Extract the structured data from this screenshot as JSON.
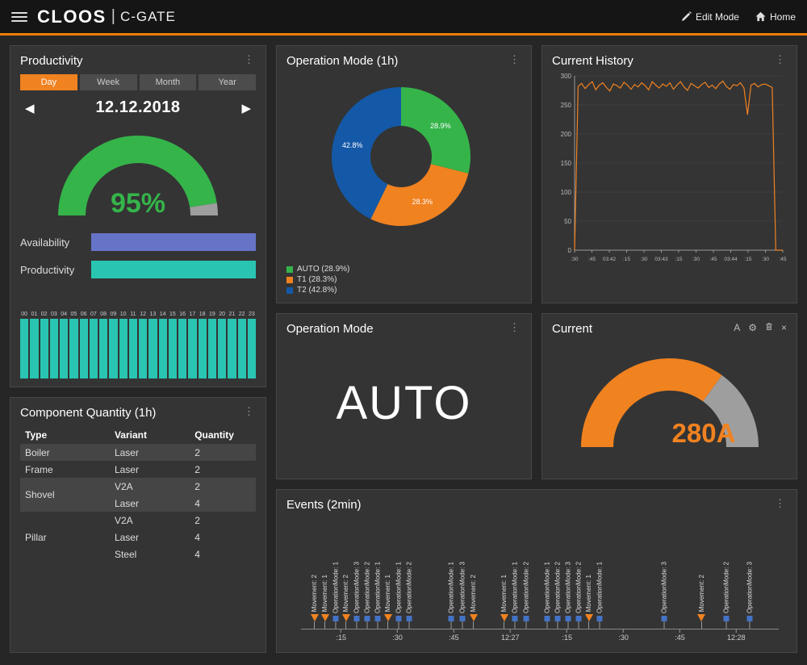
{
  "header": {
    "logo": "CLOOS",
    "divider": "|",
    "product": "C-GATE",
    "actions": [
      {
        "label": "Edit Mode",
        "icon": "edit-icon"
      },
      {
        "label": "Home",
        "icon": "home-icon"
      }
    ]
  },
  "colors": {
    "accent_orange": "#f08220",
    "green": "#35b44a",
    "teal": "#29c5b2",
    "blue_bar": "#6674c8",
    "donut_blue": "#1459a8",
    "gauge_gray": "#9e9e9e"
  },
  "productivity": {
    "title": "Productivity",
    "menu_icon": "⋮",
    "tabs": [
      {
        "label": "Day",
        "active": true
      },
      {
        "label": "Week",
        "active": false
      },
      {
        "label": "Month",
        "active": false
      },
      {
        "label": "Year",
        "active": false
      }
    ],
    "date_nav": {
      "prev": "◀",
      "date": "12.12.2018",
      "next": "▶"
    },
    "chart_data": {
      "type": "gauge",
      "value_pct": 95,
      "label": "95%",
      "color": "#35b44a",
      "rest_color": "#9e9e9e"
    },
    "kpi_bars": [
      {
        "label": "Availability",
        "value_pct": 100,
        "color": "#6674c8"
      },
      {
        "label": "Productivity",
        "value_pct": 100,
        "color": "#29c5b2"
      }
    ],
    "hourly_chart": {
      "type": "bar",
      "color": "#29c5b2",
      "categories": [
        "00",
        "01",
        "02",
        "03",
        "04",
        "05",
        "06",
        "07",
        "08",
        "09",
        "10",
        "11",
        "12",
        "13",
        "14",
        "15",
        "16",
        "17",
        "18",
        "19",
        "20",
        "21",
        "22",
        "23"
      ],
      "values_pct": [
        100,
        100,
        100,
        100,
        100,
        100,
        100,
        100,
        100,
        100,
        100,
        100,
        100,
        100,
        100,
        100,
        100,
        100,
        100,
        100,
        100,
        100,
        100,
        100
      ]
    }
  },
  "component_quantity": {
    "title": "Component Quantity (1h)",
    "menu_icon": "⋮",
    "columns": [
      "Type",
      "Variant",
      "Quantity"
    ],
    "groups": [
      {
        "type": "Boiler",
        "shaded": true,
        "rows": [
          {
            "variant": "Laser",
            "quantity": 2
          }
        ]
      },
      {
        "type": "Frame",
        "shaded": false,
        "rows": [
          {
            "variant": "Laser",
            "quantity": 2
          }
        ]
      },
      {
        "type": "Shovel",
        "shaded": true,
        "rows": [
          {
            "variant": "V2A",
            "quantity": 2
          },
          {
            "variant": "Laser",
            "quantity": 4
          }
        ]
      },
      {
        "type": "Pillar",
        "shaded": false,
        "rows": [
          {
            "variant": "V2A",
            "quantity": 2
          },
          {
            "variant": "Laser",
            "quantity": 4
          },
          {
            "variant": "Steel",
            "quantity": 4
          }
        ]
      }
    ]
  },
  "operation_mode_1h": {
    "title": "Operation Mode (1h)",
    "menu_icon": "⋮",
    "chart_data": {
      "type": "pie",
      "donut": true,
      "legend_position": "bottom-left",
      "slices": [
        {
          "name": "AUTO",
          "pct": 28.9,
          "color": "#35b44a",
          "label": "28.9%",
          "legend": "AUTO (28.9%)"
        },
        {
          "name": "T1",
          "pct": 28.3,
          "color": "#f08220",
          "label": "28.3%",
          "legend": "T1 (28.3%)"
        },
        {
          "name": "T2",
          "pct": 42.8,
          "color": "#1459a8",
          "label": "42.8%",
          "legend": "T2 (42.8%)"
        }
      ]
    }
  },
  "current_history": {
    "title": "Current History",
    "menu_icon": "⋮",
    "chart_data": {
      "type": "line",
      "color": "#f08220",
      "ylim": [
        0,
        300
      ],
      "yticks": [
        0,
        50,
        100,
        150,
        200,
        250,
        300
      ],
      "xticks": [
        ":30",
        ":45",
        "03:42",
        ":15",
        ":30",
        "03:43",
        ":15",
        ":30",
        ":45",
        "03:44",
        ":15",
        ":30",
        ":45"
      ],
      "values": [
        0,
        282,
        287,
        278,
        285,
        290,
        276,
        284,
        288,
        280,
        274,
        286,
        283,
        279,
        289,
        284,
        277,
        285,
        281,
        288,
        283,
        276,
        290,
        284,
        279,
        286,
        282,
        288,
        277,
        284,
        290,
        281,
        275,
        287,
        283,
        279,
        285,
        289,
        280,
        284,
        278,
        286,
        291,
        282,
        277,
        285,
        283,
        288,
        279,
        233,
        284,
        287,
        281,
        285,
        286,
        283,
        280,
        0,
        0,
        0
      ]
    }
  },
  "operation_mode": {
    "title": "Operation Mode",
    "menu_icon": "⋮",
    "value": "AUTO"
  },
  "current": {
    "title": "Current",
    "toolbar": {
      "text_icon": "A",
      "settings_icon": "⚙",
      "close_icon": "×"
    },
    "chart_data": {
      "type": "gauge",
      "value": 280,
      "max": 400,
      "label": "280A",
      "color": "#f08220",
      "rest_color": "#9e9e9e"
    }
  },
  "events": {
    "title": "Events (2min)",
    "menu_icon": "⋮",
    "chart_data": {
      "type": "timeline",
      "marker_types": {
        "movement": {
          "shape": "triangle",
          "color": "#f08220"
        },
        "opmode": {
          "shape": "square",
          "color": "#4472c4"
        }
      },
      "xticks": [
        {
          "label": ":15",
          "x": 0.084
        },
        {
          "label": ":30",
          "x": 0.202
        },
        {
          "label": ":45",
          "x": 0.32
        },
        {
          "label": "12:27",
          "x": 0.438
        },
        {
          "label": ":15",
          "x": 0.557
        },
        {
          "label": ":30",
          "x": 0.675
        },
        {
          "label": ":45",
          "x": 0.793
        },
        {
          "label": "12:28",
          "x": 0.911
        }
      ],
      "items": [
        {
          "label": "Movement: 2",
          "kind": "movement",
          "x": 0.028
        },
        {
          "label": "Movement: 1",
          "kind": "movement",
          "x": 0.05
        },
        {
          "label": "OperationMode: 1",
          "kind": "opmode",
          "x": 0.072
        },
        {
          "label": "Movement: 2",
          "kind": "movement",
          "x": 0.094
        },
        {
          "label": "OperationMode: 3",
          "kind": "opmode",
          "x": 0.116
        },
        {
          "label": "OperationMode: 2",
          "kind": "opmode",
          "x": 0.138
        },
        {
          "label": "OperationMode: 1",
          "kind": "opmode",
          "x": 0.16
        },
        {
          "label": "Movement: 1",
          "kind": "movement",
          "x": 0.182
        },
        {
          "label": "OperationMode: 1",
          "kind": "opmode",
          "x": 0.204
        },
        {
          "label": "OperationMode: 2",
          "kind": "opmode",
          "x": 0.226
        },
        {
          "label": "OperationMode: 1",
          "kind": "opmode",
          "x": 0.315
        },
        {
          "label": "OperationMode: 3",
          "kind": "opmode",
          "x": 0.338
        },
        {
          "label": "Movement: 2",
          "kind": "movement",
          "x": 0.361
        },
        {
          "label": "Movement: 1",
          "kind": "movement",
          "x": 0.425
        },
        {
          "label": "OperationMode: 1",
          "kind": "opmode",
          "x": 0.448
        },
        {
          "label": "OperationMode: 2",
          "kind": "opmode",
          "x": 0.471
        },
        {
          "label": "OperationMode: 1",
          "kind": "opmode",
          "x": 0.515
        },
        {
          "label": "OperationMode: 2",
          "kind": "opmode",
          "x": 0.537
        },
        {
          "label": "OperationMode: 3",
          "kind": "opmode",
          "x": 0.559
        },
        {
          "label": "OperationMode: 2",
          "kind": "opmode",
          "x": 0.581
        },
        {
          "label": "Movement: 1",
          "kind": "movement",
          "x": 0.603
        },
        {
          "label": "OperationMode: 1",
          "kind": "opmode",
          "x": 0.625
        },
        {
          "label": "OperationMode: 3",
          "kind": "opmode",
          "x": 0.76
        },
        {
          "label": "Movement: 2",
          "kind": "movement",
          "x": 0.838
        },
        {
          "label": "OperationMode: 2",
          "kind": "opmode",
          "x": 0.89
        },
        {
          "label": "OperationMode: 3",
          "kind": "opmode",
          "x": 0.94
        }
      ]
    }
  }
}
